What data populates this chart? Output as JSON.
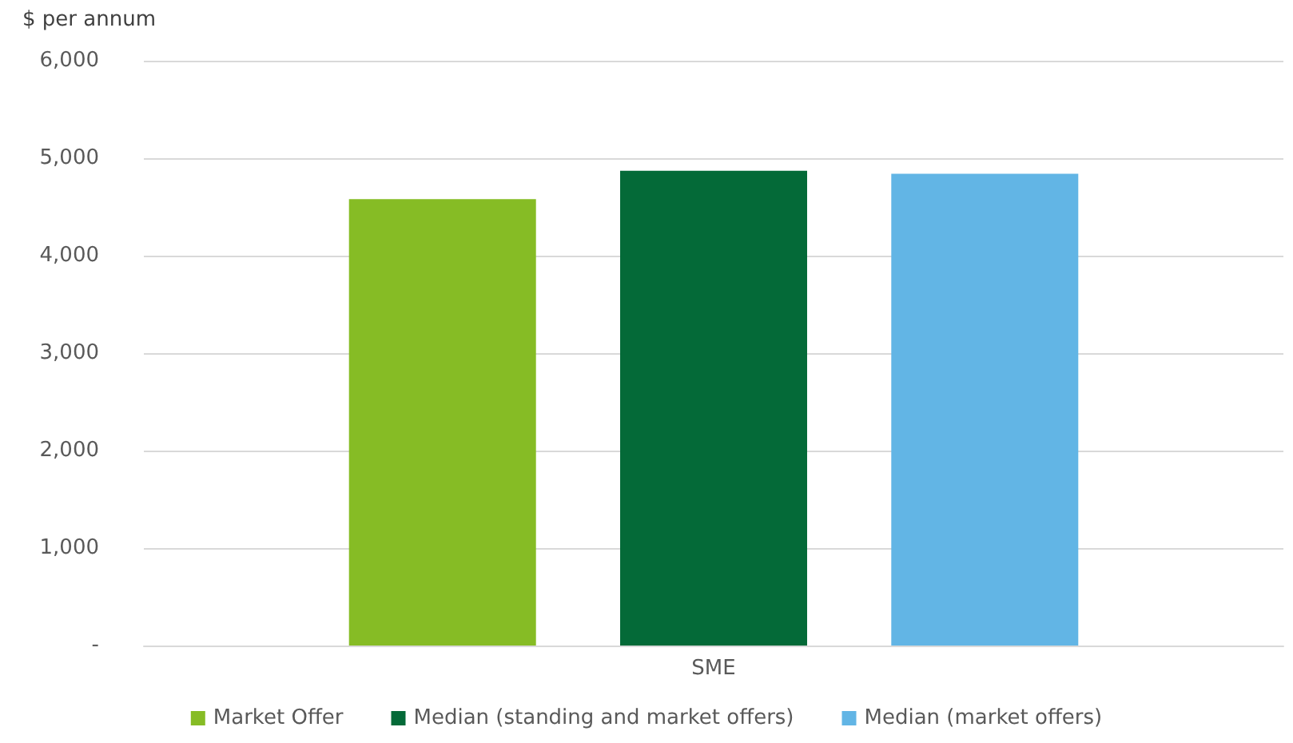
{
  "chart_data": {
    "type": "bar",
    "ylabel": "$ per annum",
    "categories": [
      "SME"
    ],
    "series": [
      {
        "name": "Market Offer",
        "color": "#86bc25",
        "values": [
          4580
        ]
      },
      {
        "name": "Median (standing and market offers)",
        "color": "#046a38",
        "values": [
          4870
        ]
      },
      {
        "name": "Median (market offers)",
        "color": "#62b5e5",
        "values": [
          4840
        ]
      }
    ],
    "ylim": [
      0,
      6000
    ],
    "yticks": [
      {
        "value": 0,
        "label": "-"
      },
      {
        "value": 1000,
        "label": "1,000"
      },
      {
        "value": 2000,
        "label": "2,000"
      },
      {
        "value": 3000,
        "label": "3,000"
      },
      {
        "value": 4000,
        "label": "4,000"
      },
      {
        "value": 5000,
        "label": "5,000"
      },
      {
        "value": 6000,
        "label": "6,000"
      }
    ],
    "grid": "y",
    "legend": "bottom"
  }
}
